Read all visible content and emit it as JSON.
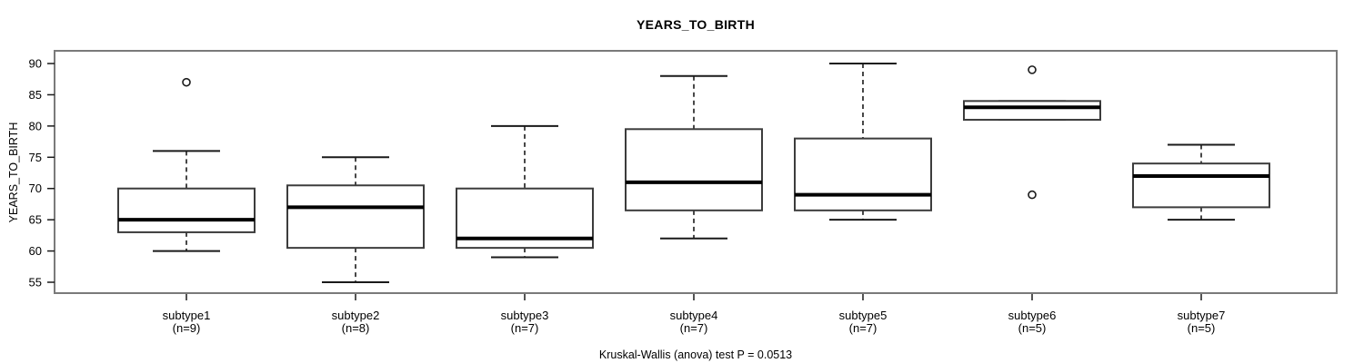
{
  "chart_data": {
    "type": "boxplot",
    "title": "YEARS_TO_BIRTH",
    "ylabel": "YEARS_TO_BIRTH",
    "xlabel": "",
    "footnote": "Kruskal-Wallis (anova) test P = 0.0513",
    "ylim": [
      55,
      90
    ],
    "yticks": [
      55,
      60,
      65,
      70,
      75,
      80,
      85,
      90
    ],
    "grid": false,
    "legend": false,
    "categories": [
      "subtype1",
      "subtype2",
      "subtype3",
      "subtype4",
      "subtype5",
      "subtype6",
      "subtype7"
    ],
    "group_size_labels": [
      "(n=9)",
      "(n=8)",
      "(n=7)",
      "(n=7)",
      "(n=7)",
      "(n=5)",
      "(n=5)"
    ],
    "series": [
      {
        "name": "subtype1",
        "n": 9,
        "whisker_low": 60,
        "q1": 63,
        "median": 65,
        "q3": 70,
        "whisker_high": 76,
        "outliers": [
          87
        ]
      },
      {
        "name": "subtype2",
        "n": 8,
        "whisker_low": 55,
        "q1": 60.5,
        "median": 67,
        "q3": 70.5,
        "whisker_high": 75,
        "outliers": []
      },
      {
        "name": "subtype3",
        "n": 7,
        "whisker_low": 59,
        "q1": 60.5,
        "median": 62,
        "q3": 70,
        "whisker_high": 80,
        "outliers": []
      },
      {
        "name": "subtype4",
        "n": 7,
        "whisker_low": 62,
        "q1": 66.5,
        "median": 71,
        "q3": 79.5,
        "whisker_high": 88,
        "outliers": []
      },
      {
        "name": "subtype5",
        "n": 7,
        "whisker_low": 65,
        "q1": 66.5,
        "median": 69,
        "q3": 78,
        "whisker_high": 90,
        "outliers": []
      },
      {
        "name": "subtype6",
        "n": 5,
        "whisker_low": 81,
        "q1": 81,
        "median": 83,
        "q3": 84,
        "whisker_high": 84,
        "outliers": [
          89,
          69
        ]
      },
      {
        "name": "subtype7",
        "n": 5,
        "whisker_low": 65,
        "q1": 67,
        "median": 72,
        "q3": 74,
        "whisker_high": 77,
        "outliers": []
      }
    ],
    "colors": {
      "frame": "#7a7a7a",
      "box_border": "#3c3c3c",
      "median": "#000000",
      "whisker": "#1a1a1a",
      "text": "#000000",
      "background": "#ffffff"
    }
  }
}
